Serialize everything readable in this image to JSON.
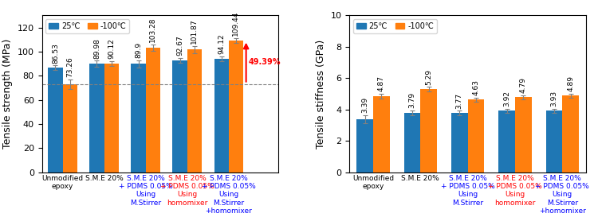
{
  "chart_data": [
    {
      "type": "bar",
      "categories": [
        "Unmodified\nepoxy",
        "S.M.E 20%",
        "S.M.E 20%\n+ PDMS 0.05%\nUsing\nM.Stirrer",
        "S.M.E 20%\n+ PDMS 0.05%\nUsing\nhomomixer",
        "S.M.E 20%\n+ PDMS 0.05%\nUsing\nM.Stirrer\n+homomixer"
      ],
      "category_colors": [
        "black",
        "black",
        "blue",
        "red",
        "blue"
      ],
      "series": [
        {
          "name": "25℃",
          "values": [
            86.53,
            89.98,
            89.9,
            92.67,
            94.12
          ],
          "errors": [
            2.0,
            2.5,
            3.0,
            2.0,
            2.0
          ]
        },
        {
          "name": "-100℃",
          "values": [
            73.26,
            90.12,
            103.28,
            101.87,
            109.44
          ],
          "errors": [
            4.0,
            2.0,
            2.5,
            3.0,
            2.0
          ]
        }
      ],
      "ylabel": "Tensile strength (MPa)",
      "ylim": [
        0,
        130
      ],
      "yticks": [
        0,
        20,
        40,
        60,
        80,
        100,
        120
      ],
      "data_labels": true,
      "legend": "upper left",
      "reference_line": 73.26,
      "annotations": [
        {
          "text": "49.39%",
          "color": "red",
          "category": "S.M.E 20%\n+ PDMS 0.05%\nUsing\nM.Stirrer\n+homomixer",
          "series": "-100℃"
        }
      ]
    },
    {
      "type": "bar",
      "categories": [
        "Unmodified\nepoxy",
        "S.M.E 20%",
        "S.M.E 20%\n+ PDMS 0.05%\nUsing\nM.Stirrer",
        "S.M.E 20%\n+ PDMS 0.05%\nUsing\nhomomixer",
        "S.M.E 20%\n+ PDMS 0.05%\nUsing\nM.Stirrer\n+homomixer"
      ],
      "category_colors": [
        "black",
        "black",
        "blue",
        "red",
        "blue"
      ],
      "series": [
        {
          "name": "25℃",
          "values": [
            3.39,
            3.79,
            3.77,
            3.92,
            3.93
          ],
          "errors": [
            0.25,
            0.15,
            0.15,
            0.12,
            0.12
          ]
        },
        {
          "name": "-100℃",
          "values": [
            4.87,
            5.29,
            4.63,
            4.79,
            4.89
          ],
          "errors": [
            0.15,
            0.15,
            0.12,
            0.12,
            0.12
          ]
        }
      ],
      "ylabel": "Tensile stiffness (GPa)",
      "ylim": [
        0,
        10
      ],
      "yticks": [
        0,
        2,
        4,
        6,
        8,
        10
      ],
      "data_labels": true,
      "legend": "upper left"
    }
  ]
}
